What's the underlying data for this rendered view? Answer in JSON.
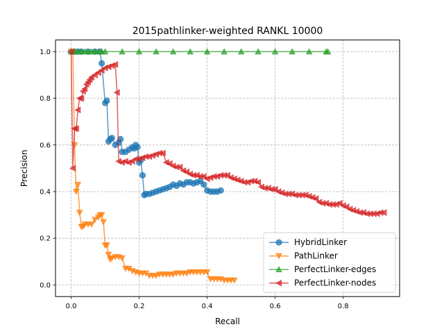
{
  "chart_data": {
    "type": "line",
    "title": "2015pathlinker-weighted RANKL 10000",
    "xlabel": "Recall",
    "ylabel": "Precision",
    "xlim": [
      -0.046,
      0.966
    ],
    "ylim": [
      -0.05,
      1.05
    ],
    "xticks": [
      0.0,
      0.2,
      0.4,
      0.6,
      0.8
    ],
    "xtick_labels": [
      "0.0",
      "0.2",
      "0.4",
      "0.6",
      "0.8"
    ],
    "yticks": [
      0.0,
      0.2,
      0.4,
      0.6,
      0.8,
      1.0
    ],
    "ytick_labels": [
      "0.0",
      "0.2",
      "0.4",
      "0.6",
      "0.8",
      "1.0"
    ],
    "grid": true,
    "legend_position": "lower right",
    "series": [
      {
        "name": "HybridLinker",
        "color": "#1f77b4",
        "marker": "circle",
        "x": [
          0.0,
          0.01,
          0.02,
          0.03,
          0.05,
          0.07,
          0.085,
          0.09,
          0.1,
          0.105,
          0.11,
          0.115,
          0.12,
          0.13,
          0.14,
          0.145,
          0.15,
          0.16,
          0.17,
          0.18,
          0.185,
          0.19,
          0.195,
          0.2,
          0.205,
          0.21,
          0.215,
          0.22,
          0.23,
          0.24,
          0.25,
          0.26,
          0.27,
          0.28,
          0.29,
          0.3,
          0.31,
          0.32,
          0.33,
          0.34,
          0.35,
          0.36,
          0.37,
          0.38,
          0.39,
          0.4,
          0.41,
          0.42,
          0.43,
          0.44
        ],
        "y": [
          1.0,
          1.0,
          1.0,
          1.0,
          1.0,
          1.0,
          1.0,
          0.95,
          0.78,
          0.79,
          0.615,
          0.625,
          0.63,
          0.6,
          0.61,
          0.625,
          0.57,
          0.57,
          0.58,
          0.59,
          0.585,
          0.6,
          0.59,
          0.525,
          0.535,
          0.47,
          0.385,
          0.39,
          0.39,
          0.395,
          0.4,
          0.405,
          0.41,
          0.415,
          0.42,
          0.43,
          0.425,
          0.435,
          0.43,
          0.44,
          0.44,
          0.435,
          0.44,
          0.445,
          0.43,
          0.405,
          0.4,
          0.4,
          0.4,
          0.405
        ]
      },
      {
        "name": "PathLinker",
        "color": "#ff7f0e",
        "marker": "triangle-down",
        "x": [
          0.0,
          0.005,
          0.01,
          0.015,
          0.02,
          0.025,
          0.03,
          0.035,
          0.04,
          0.05,
          0.06,
          0.07,
          0.08,
          0.085,
          0.09,
          0.095,
          0.1,
          0.105,
          0.11,
          0.115,
          0.12,
          0.13,
          0.14,
          0.15,
          0.16,
          0.17,
          0.18,
          0.19,
          0.2,
          0.21,
          0.22,
          0.23,
          0.24,
          0.25,
          0.26,
          0.27,
          0.28,
          0.29,
          0.3,
          0.31,
          0.32,
          0.33,
          0.34,
          0.35,
          0.36,
          0.37,
          0.38,
          0.39,
          0.4,
          0.41,
          0.42,
          0.43,
          0.44,
          0.45,
          0.46,
          0.47,
          0.48
        ],
        "y": [
          1.0,
          1.0,
          0.6,
          0.4,
          0.43,
          0.31,
          0.25,
          0.25,
          0.26,
          0.26,
          0.26,
          0.28,
          0.29,
          0.3,
          0.3,
          0.27,
          0.17,
          0.17,
          0.13,
          0.11,
          0.115,
          0.12,
          0.12,
          0.115,
          0.07,
          0.07,
          0.06,
          0.055,
          0.05,
          0.05,
          0.05,
          0.04,
          0.04,
          0.04,
          0.045,
          0.045,
          0.045,
          0.045,
          0.045,
          0.05,
          0.05,
          0.05,
          0.05,
          0.055,
          0.055,
          0.055,
          0.055,
          0.055,
          0.055,
          0.025,
          0.025,
          0.025,
          0.025,
          0.02,
          0.02,
          0.02,
          0.02
        ]
      },
      {
        "name": "PerfectLinker-edges",
        "color": "#2ca02c",
        "marker": "triangle-up",
        "x": [
          0.0,
          0.01,
          0.02,
          0.03,
          0.04,
          0.05,
          0.06,
          0.07,
          0.08,
          0.09,
          0.1,
          0.15,
          0.2,
          0.25,
          0.3,
          0.35,
          0.4,
          0.45,
          0.5,
          0.55,
          0.6,
          0.65,
          0.7,
          0.75,
          0.755
        ],
        "y": [
          1.0,
          1.0,
          1.0,
          1.0,
          1.0,
          1.0,
          1.0,
          1.0,
          1.0,
          1.0,
          1.0,
          1.0,
          1.0,
          1.0,
          1.0,
          1.0,
          1.0,
          1.0,
          1.0,
          1.0,
          1.0,
          1.0,
          1.0,
          1.0,
          1.0
        ]
      },
      {
        "name": "PerfectLinker-nodes",
        "color": "#d62728",
        "marker": "triangle-left",
        "x": [
          0.0,
          0.005,
          0.01,
          0.015,
          0.02,
          0.025,
          0.03,
          0.035,
          0.04,
          0.045,
          0.05,
          0.055,
          0.06,
          0.07,
          0.08,
          0.09,
          0.1,
          0.11,
          0.12,
          0.13,
          0.135,
          0.14,
          0.15,
          0.16,
          0.17,
          0.18,
          0.19,
          0.2,
          0.21,
          0.22,
          0.23,
          0.24,
          0.25,
          0.26,
          0.27,
          0.28,
          0.29,
          0.3,
          0.31,
          0.32,
          0.33,
          0.34,
          0.35,
          0.36,
          0.37,
          0.38,
          0.39,
          0.4,
          0.41,
          0.42,
          0.43,
          0.44,
          0.45,
          0.46,
          0.47,
          0.48,
          0.49,
          0.5,
          0.51,
          0.52,
          0.53,
          0.54,
          0.55,
          0.56,
          0.57,
          0.58,
          0.59,
          0.6,
          0.61,
          0.62,
          0.63,
          0.64,
          0.65,
          0.66,
          0.67,
          0.68,
          0.69,
          0.7,
          0.71,
          0.72,
          0.73,
          0.74,
          0.75,
          0.76,
          0.77,
          0.78,
          0.79,
          0.8,
          0.81,
          0.82,
          0.83,
          0.84,
          0.85,
          0.86,
          0.87,
          0.88,
          0.89,
          0.9,
          0.91,
          0.92
        ],
        "y": [
          1.0,
          0.5,
          0.67,
          0.67,
          0.75,
          0.8,
          0.8,
          0.83,
          0.84,
          0.86,
          0.87,
          0.88,
          0.89,
          0.9,
          0.91,
          0.92,
          0.93,
          0.935,
          0.94,
          0.945,
          0.825,
          0.53,
          0.525,
          0.53,
          0.525,
          0.53,
          0.54,
          0.54,
          0.545,
          0.55,
          0.55,
          0.555,
          0.56,
          0.565,
          0.565,
          0.525,
          0.52,
          0.51,
          0.505,
          0.505,
          0.49,
          0.485,
          0.475,
          0.47,
          0.47,
          0.465,
          0.465,
          0.455,
          0.46,
          0.465,
          0.465,
          0.47,
          0.47,
          0.47,
          0.46,
          0.455,
          0.45,
          0.445,
          0.44,
          0.44,
          0.445,
          0.445,
          0.44,
          0.42,
          0.415,
          0.415,
          0.41,
          0.41,
          0.4,
          0.395,
          0.39,
          0.39,
          0.39,
          0.385,
          0.385,
          0.385,
          0.385,
          0.38,
          0.375,
          0.37,
          0.355,
          0.35,
          0.35,
          0.345,
          0.345,
          0.345,
          0.35,
          0.34,
          0.335,
          0.325,
          0.32,
          0.315,
          0.31,
          0.31,
          0.305,
          0.305,
          0.305,
          0.305,
          0.31,
          0.31
        ]
      }
    ]
  }
}
